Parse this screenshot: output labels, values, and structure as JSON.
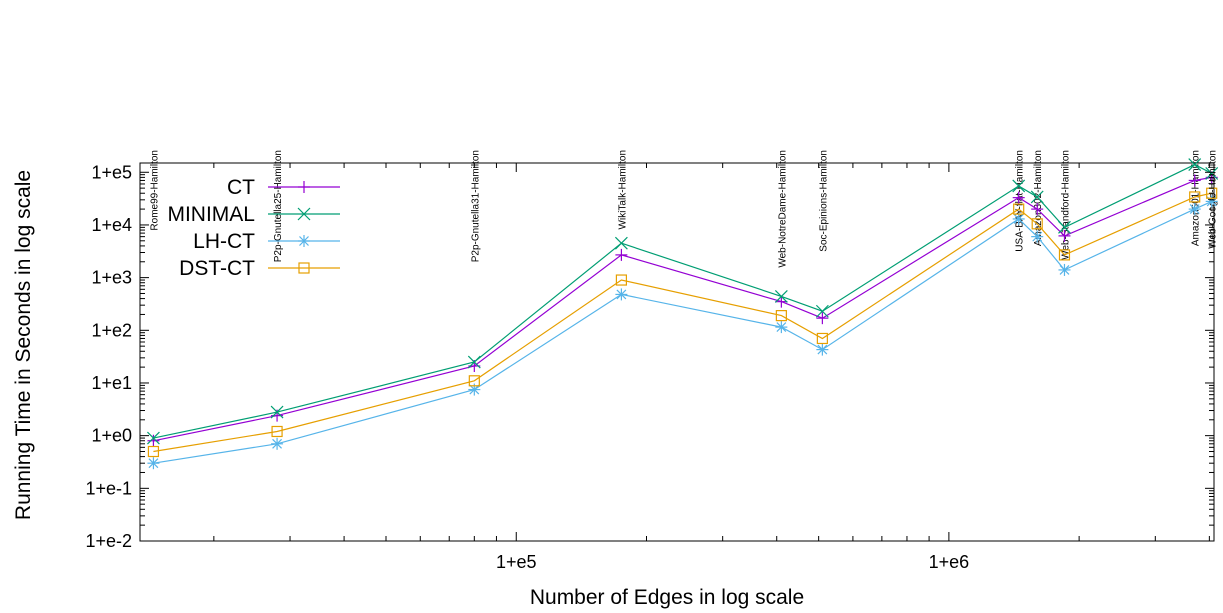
{
  "chart_data": {
    "type": "line",
    "title": "",
    "xlabel": "Number of Edges in log scale",
    "ylabel": "Running Time in Seconds in log scale",
    "xscale": "log",
    "yscale": "log",
    "xlim": [
      13500,
      4100000
    ],
    "ylim": [
      0.01,
      150000
    ],
    "grid": false,
    "legend_position": "top-left",
    "x_ticks": [
      {
        "value": 100000,
        "label": "1+e5"
      },
      {
        "value": 1000000,
        "label": "1+e6"
      }
    ],
    "y_ticks": [
      {
        "value": 0.01,
        "label": "1+e-2"
      },
      {
        "value": 0.1,
        "label": "1+e-1"
      },
      {
        "value": 1,
        "label": "1+e0"
      },
      {
        "value": 10,
        "label": "1+e1"
      },
      {
        "value": 100,
        "label": "1+e2"
      },
      {
        "value": 1000,
        "label": "1+e3"
      },
      {
        "value": 10000,
        "label": "1+e4"
      },
      {
        "value": 100000,
        "label": "1+e5"
      }
    ],
    "graphs": [
      {
        "label": "Rome99-Hamilton",
        "x": 14500
      },
      {
        "label": "P2p-Gnutella25-Hamilton",
        "x": 28000
      },
      {
        "label": "P2p-Gnutella31-Hamilton",
        "x": 80000
      },
      {
        "label": "WikiTalk-Hamilton",
        "x": 175000
      },
      {
        "label": "Web-NotreDame-Hamilton",
        "x": 410000
      },
      {
        "label": "Soc-Epinions-Hamilton",
        "x": 510000
      },
      {
        "label": "USA-BAY-flat-Hamilton",
        "x": 1450000
      },
      {
        "label": "Amazon302-Hamilton",
        "x": 1600000
      },
      {
        "label": "Web-Standford-Hamilton",
        "x": 1850000
      },
      {
        "label": "Amazon601-Hamilton",
        "x": 3700000
      },
      {
        "label": "Web-Google-Hamilton",
        "x": 4050000
      }
    ],
    "series": [
      {
        "name": "CT",
        "color": "#9400d3",
        "marker": "plus",
        "y": [
          0.8,
          2.4,
          21,
          2700,
          350,
          170,
          33000,
          20000,
          6200,
          70000,
          80000
        ]
      },
      {
        "name": "MINIMAL",
        "color": "#009e73",
        "marker": "cross",
        "y": [
          0.9,
          2.8,
          25,
          4500,
          440,
          230,
          55000,
          34000,
          9000,
          140000,
          95000
        ]
      },
      {
        "name": "LH-CT",
        "color": "#56b4e9",
        "marker": "asterisk",
        "y": [
          0.3,
          0.7,
          7.5,
          480,
          115,
          43,
          13000,
          6000,
          1400,
          20000,
          28000
        ]
      },
      {
        "name": "DST-CT",
        "color": "#e69f00",
        "marker": "box",
        "y": [
          0.5,
          1.2,
          11,
          900,
          190,
          70,
          20000,
          10500,
          2700,
          34000,
          40000
        ]
      }
    ]
  }
}
